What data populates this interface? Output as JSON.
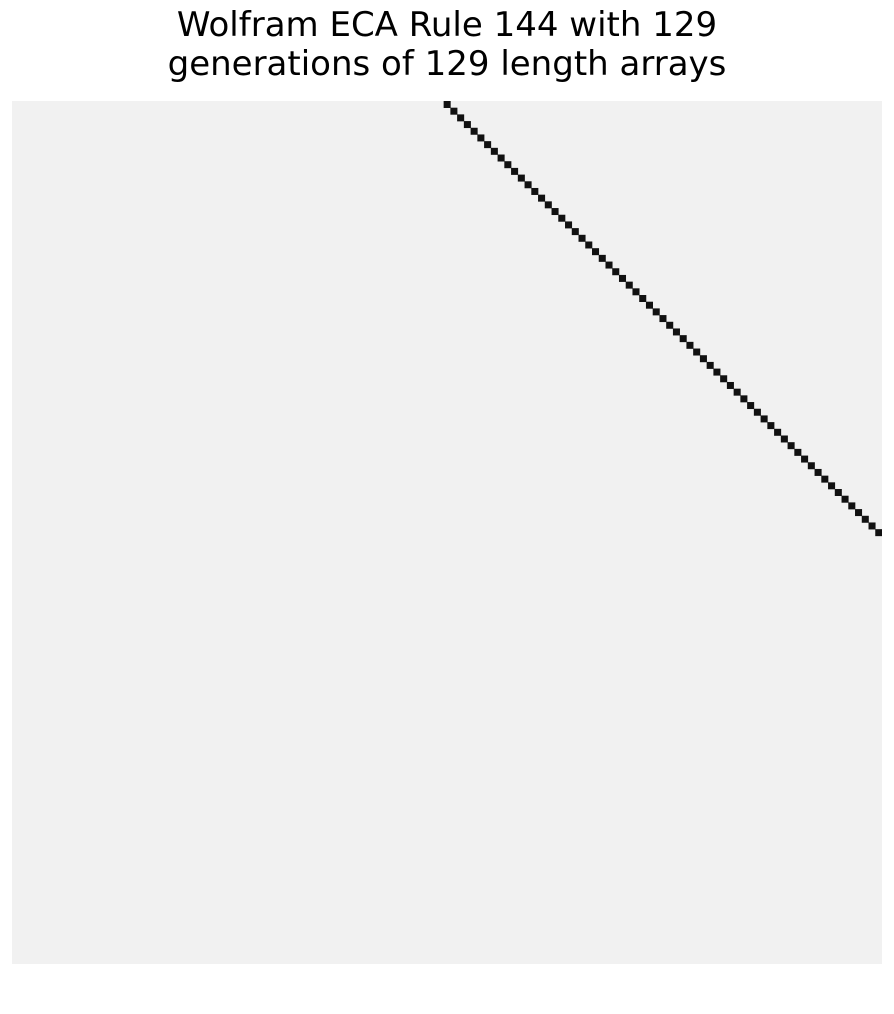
{
  "title_line1": "Wolfram ECA Rule 144 with 129",
  "title_line2": "generations of 129 length arrays",
  "chart_data": {
    "type": "heatmap",
    "title": "Wolfram ECA Rule 144 with 129 generations of 129 length arrays",
    "rule": 144,
    "generations": 129,
    "width": 129,
    "initial_live_cell": 64,
    "colors": {
      "off": "#f1f1f1",
      "on": "#111111"
    },
    "grid": false,
    "axes": "off"
  }
}
